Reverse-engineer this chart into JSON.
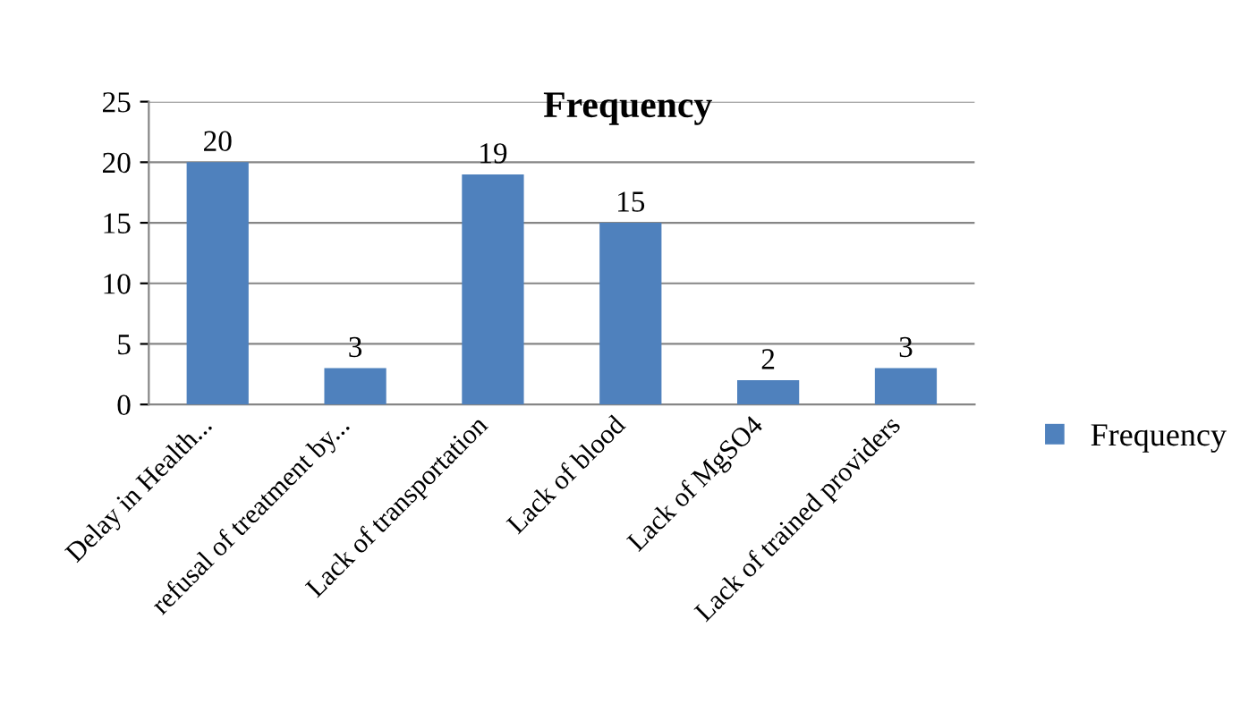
{
  "chart_data": {
    "type": "bar",
    "title": "Frequency",
    "categories": [
      "Delay in Health...",
      "refusal of treatment by...",
      "Lack of transportation",
      "Lack of blood",
      "Lack of MgSO4",
      "Lack of trained providers"
    ],
    "series": [
      {
        "name": "Frequency",
        "color": "#4f81bd",
        "values": [
          20,
          3,
          19,
          15,
          2,
          3
        ]
      }
    ],
    "ylim": [
      0,
      25
    ],
    "yticks": [
      0,
      5,
      10,
      15,
      20,
      25
    ],
    "grid": "y",
    "legend": "right",
    "data_labels": true
  }
}
